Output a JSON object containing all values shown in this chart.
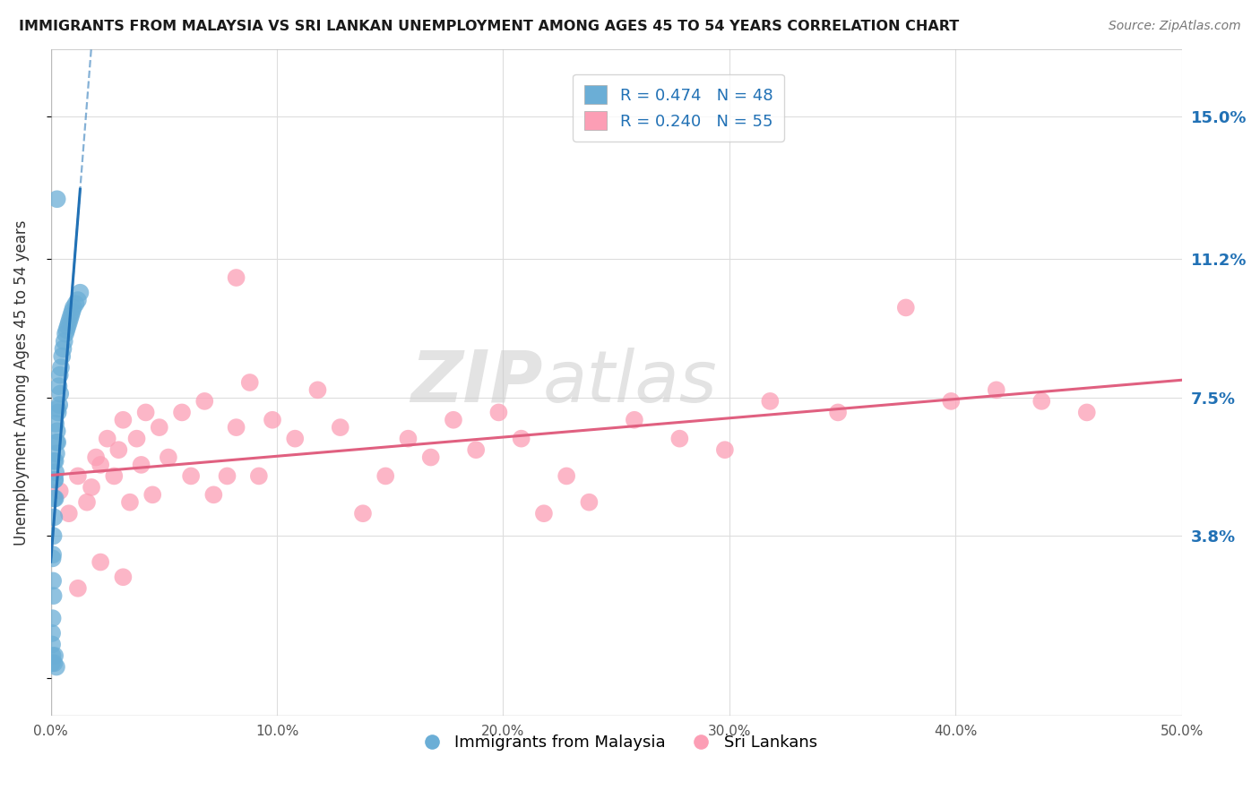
{
  "title": "IMMIGRANTS FROM MALAYSIA VS SRI LANKAN UNEMPLOYMENT AMONG AGES 45 TO 54 YEARS CORRELATION CHART",
  "source": "Source: ZipAtlas.com",
  "ylabel": "Unemployment Among Ages 45 to 54 years",
  "y_ticks": [
    0.0,
    0.038,
    0.075,
    0.112,
    0.15
  ],
  "y_tick_labels": [
    "",
    "3.8%",
    "7.5%",
    "11.2%",
    "15.0%"
  ],
  "xmin": 0.0,
  "xmax": 0.5,
  "ymin": -0.01,
  "ymax": 0.168,
  "legend_blue_label": "R = 0.474   N = 48",
  "legend_pink_label": "R = 0.240   N = 55",
  "legend_bottom_blue": "Immigrants from Malaysia",
  "legend_bottom_pink": "Sri Lankans",
  "blue_color": "#6baed6",
  "blue_line_color": "#2171b5",
  "pink_color": "#fc9eb5",
  "pink_line_color": "#e06080",
  "blue_points_x": [
    0.0008,
    0.001,
    0.0012,
    0.0008,
    0.0006,
    0.0015,
    0.0018,
    0.002,
    0.0015,
    0.0012,
    0.001,
    0.0022,
    0.0025,
    0.002,
    0.0018,
    0.0015,
    0.003,
    0.0028,
    0.0025,
    0.0022,
    0.0035,
    0.0032,
    0.003,
    0.004,
    0.0038,
    0.0045,
    0.0042,
    0.005,
    0.0055,
    0.006,
    0.0065,
    0.007,
    0.0075,
    0.008,
    0.0085,
    0.009,
    0.0095,
    0.01,
    0.011,
    0.012,
    0.013,
    0.0028,
    0.0018,
    0.0008,
    0.0006,
    0.0005,
    0.0015,
    0.0025
  ],
  "blue_points_y": [
    0.032,
    0.026,
    0.022,
    0.016,
    0.012,
    0.058,
    0.053,
    0.048,
    0.043,
    0.038,
    0.033,
    0.068,
    0.063,
    0.058,
    0.053,
    0.048,
    0.072,
    0.066,
    0.06,
    0.055,
    0.078,
    0.071,
    0.063,
    0.081,
    0.073,
    0.083,
    0.076,
    0.086,
    0.088,
    0.09,
    0.092,
    0.093,
    0.094,
    0.095,
    0.096,
    0.097,
    0.098,
    0.099,
    0.1,
    0.101,
    0.103,
    0.128,
    0.006,
    0.006,
    0.009,
    0.004,
    0.004,
    0.003
  ],
  "pink_points_x": [
    0.004,
    0.008,
    0.012,
    0.016,
    0.018,
    0.02,
    0.022,
    0.025,
    0.028,
    0.03,
    0.032,
    0.035,
    0.038,
    0.04,
    0.042,
    0.045,
    0.048,
    0.052,
    0.058,
    0.062,
    0.068,
    0.072,
    0.078,
    0.082,
    0.088,
    0.092,
    0.098,
    0.108,
    0.118,
    0.128,
    0.138,
    0.148,
    0.158,
    0.168,
    0.178,
    0.188,
    0.198,
    0.208,
    0.218,
    0.228,
    0.238,
    0.258,
    0.278,
    0.298,
    0.318,
    0.348,
    0.378,
    0.398,
    0.418,
    0.438,
    0.458,
    0.012,
    0.022,
    0.032,
    0.082
  ],
  "pink_points_y": [
    0.05,
    0.044,
    0.054,
    0.047,
    0.051,
    0.059,
    0.057,
    0.064,
    0.054,
    0.061,
    0.069,
    0.047,
    0.064,
    0.057,
    0.071,
    0.049,
    0.067,
    0.059,
    0.071,
    0.054,
    0.074,
    0.049,
    0.054,
    0.067,
    0.079,
    0.054,
    0.069,
    0.064,
    0.077,
    0.067,
    0.044,
    0.054,
    0.064,
    0.059,
    0.069,
    0.061,
    0.071,
    0.064,
    0.044,
    0.054,
    0.047,
    0.069,
    0.064,
    0.061,
    0.074,
    0.071,
    0.099,
    0.074,
    0.077,
    0.074,
    0.071,
    0.024,
    0.031,
    0.027,
    0.107
  ],
  "watermark_zip": "ZIP",
  "watermark_atlas": "atlas",
  "background_color": "#ffffff",
  "grid_color": "#dddddd",
  "x_tick_vals": [
    0.0,
    0.1,
    0.2,
    0.3,
    0.4,
    0.5
  ],
  "x_tick_labels": [
    "0.0%",
    "10.0%",
    "20.0%",
    "30.0%",
    "40.0%",
    "50.0%"
  ]
}
